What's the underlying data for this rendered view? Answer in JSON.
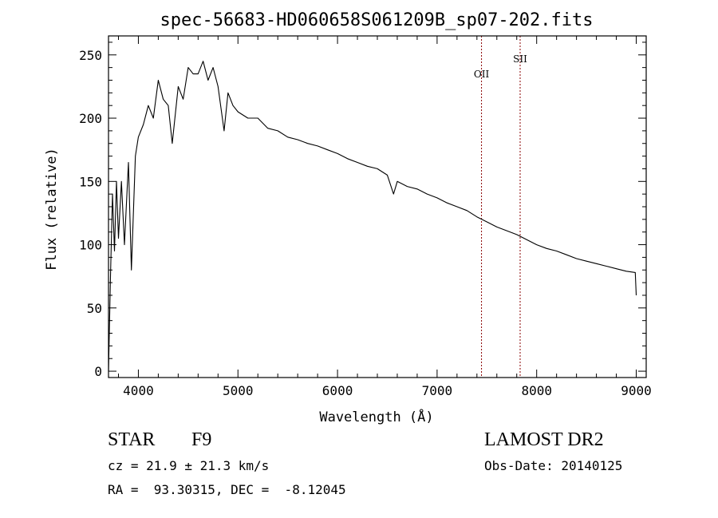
{
  "chart_data": {
    "type": "line",
    "title": "spec-56683-HD060658S061209B_sp07-202.fits",
    "xlabel": "Wavelength (Å)",
    "ylabel": "Flux (relative)",
    "xlim": [
      3700,
      9100
    ],
    "ylim": [
      -5,
      265
    ],
    "x_ticks": [
      4000,
      5000,
      6000,
      7000,
      8000,
      9000
    ],
    "y_ticks": [
      0,
      50,
      100,
      150,
      200,
      250
    ],
    "grid": false,
    "spectral_lines": [
      {
        "name": "OII",
        "wavelength": 7446
      },
      {
        "name": "SII",
        "wavelength": 7834
      }
    ],
    "series": [
      {
        "x": [
          3700,
          3720,
          3740,
          3760,
          3780,
          3800,
          3830,
          3860,
          3900,
          3930,
          3970,
          4000,
          4050,
          4100,
          4150,
          4200,
          4250,
          4300,
          4340,
          4400,
          4450,
          4500,
          4550,
          4600,
          4650,
          4700,
          4750,
          4800,
          4861,
          4900,
          4950,
          5000,
          5100,
          5200,
          5300,
          5400,
          5500,
          5600,
          5700,
          5800,
          5900,
          6000,
          6100,
          6200,
          6300,
          6400,
          6500,
          6563,
          6600,
          6700,
          6800,
          6900,
          7000,
          7100,
          7200,
          7300,
          7400,
          7500,
          7600,
          7700,
          7800,
          7900,
          8000,
          8100,
          8200,
          8300,
          8400,
          8500,
          8600,
          8700,
          8800,
          8900,
          8990,
          9000
        ],
        "y": [
          0,
          75,
          140,
          95,
          150,
          105,
          150,
          100,
          165,
          80,
          170,
          185,
          195,
          210,
          200,
          230,
          215,
          210,
          180,
          225,
          215,
          240,
          235,
          235,
          245,
          230,
          240,
          225,
          190,
          220,
          210,
          205,
          200,
          200,
          192,
          190,
          185,
          183,
          180,
          178,
          175,
          172,
          168,
          165,
          162,
          160,
          155,
          140,
          150,
          146,
          144,
          140,
          137,
          133,
          130,
          127,
          122,
          118,
          114,
          111,
          108,
          104,
          100,
          97,
          95,
          92,
          89,
          87,
          85,
          83,
          81,
          79,
          78,
          60
        ]
      }
    ]
  },
  "info": {
    "object_type": "STAR",
    "subclass": "F9",
    "survey": "LAMOST DR2",
    "cz": "cz = 21.9 ± 21.3 km/s",
    "obs_date": "Obs-Date: 20140125",
    "coords": "RA =  93.30315, DEC =  -8.12045"
  },
  "colors": {
    "axes": "#000000",
    "spectrum": "#000000",
    "line_marker": "#8b0000"
  }
}
